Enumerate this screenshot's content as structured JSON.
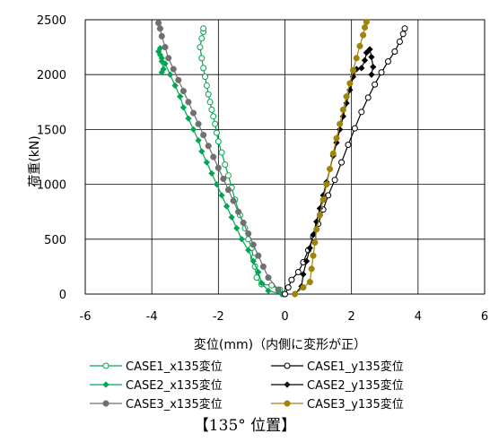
{
  "chart_data": {
    "type": "scatter",
    "xlabel": "変位(mm)（内側に変形が正）",
    "ylabel": "荷重(kN)",
    "xlim": [
      -6,
      6
    ],
    "ylim": [
      0,
      2500
    ],
    "xticks": [
      "-6",
      "-4",
      "-2",
      "0",
      "2",
      "4",
      "6"
    ],
    "yticks": [
      "0",
      "500",
      "1000",
      "1500",
      "2000",
      "2500"
    ],
    "grid": true,
    "legend_position": "bottom",
    "series": [
      {
        "name": "CASE1_x135変位",
        "color": "#00a651",
        "marker": "circle-open",
        "points": [
          [
            -0.05,
            0
          ],
          [
            -0.15,
            40
          ],
          [
            -0.4,
            80
          ],
          [
            -0.7,
            90
          ],
          [
            -0.85,
            150
          ],
          [
            -0.9,
            250
          ],
          [
            -0.95,
            330
          ],
          [
            -1.0,
            420
          ],
          [
            -1.1,
            500
          ],
          [
            -1.2,
            600
          ],
          [
            -1.35,
            720
          ],
          [
            -1.5,
            860
          ],
          [
            -1.6,
            970
          ],
          [
            -1.7,
            1080
          ],
          [
            -1.8,
            1180
          ],
          [
            -1.9,
            1290
          ],
          [
            -2.0,
            1390
          ],
          [
            -2.05,
            1470
          ],
          [
            -2.1,
            1550
          ],
          [
            -2.15,
            1620
          ],
          [
            -2.2,
            1680
          ],
          [
            -2.25,
            1750
          ],
          [
            -2.3,
            1820
          ],
          [
            -2.35,
            1900
          ],
          [
            -2.4,
            1980
          ],
          [
            -2.45,
            2060
          ],
          [
            -2.5,
            2150
          ],
          [
            -2.55,
            2250
          ],
          [
            -2.5,
            2330
          ],
          [
            -2.45,
            2390
          ],
          [
            -2.45,
            2420
          ]
        ]
      },
      {
        "name": "CASE2_x135変位",
        "color": "#00a651",
        "marker": "diamond-filled",
        "points": [
          [
            -0.1,
            0
          ],
          [
            -0.5,
            30
          ],
          [
            -0.7,
            100
          ],
          [
            -0.8,
            200
          ],
          [
            -0.95,
            300
          ],
          [
            -1.1,
            400
          ],
          [
            -1.3,
            500
          ],
          [
            -1.45,
            600
          ],
          [
            -1.6,
            700
          ],
          [
            -1.75,
            800
          ],
          [
            -1.9,
            900
          ],
          [
            -2.05,
            1000
          ],
          [
            -2.2,
            1100
          ],
          [
            -2.35,
            1200
          ],
          [
            -2.5,
            1300
          ],
          [
            -2.6,
            1400
          ],
          [
            -2.75,
            1500
          ],
          [
            -2.9,
            1600
          ],
          [
            -3.05,
            1700
          ],
          [
            -3.15,
            1800
          ],
          [
            -3.3,
            1900
          ],
          [
            -3.45,
            2000
          ],
          [
            -3.6,
            2100
          ],
          [
            -3.7,
            2150
          ],
          [
            -3.75,
            2180
          ],
          [
            -3.8,
            2210
          ],
          [
            -3.75,
            2240
          ],
          [
            -3.7,
            2120
          ],
          [
            -3.65,
            2050
          ],
          [
            -3.7,
            2020
          ]
        ]
      },
      {
        "name": "CASE3_x135変位",
        "color": "#707070",
        "marker": "circle-filled",
        "points": [
          [
            0,
            0
          ],
          [
            -0.2,
            40
          ],
          [
            -0.5,
            150
          ],
          [
            -0.65,
            250
          ],
          [
            -0.8,
            350
          ],
          [
            -0.95,
            450
          ],
          [
            -1.1,
            550
          ],
          [
            -1.25,
            650
          ],
          [
            -1.4,
            750
          ],
          [
            -1.55,
            850
          ],
          [
            -1.7,
            950
          ],
          [
            -1.85,
            1050
          ],
          [
            -2.0,
            1150
          ],
          [
            -2.15,
            1250
          ],
          [
            -2.3,
            1350
          ],
          [
            -2.45,
            1450
          ],
          [
            -2.6,
            1550
          ],
          [
            -2.75,
            1650
          ],
          [
            -2.9,
            1750
          ],
          [
            -3.05,
            1850
          ],
          [
            -3.2,
            1950
          ],
          [
            -3.35,
            2050
          ],
          [
            -3.5,
            2150
          ],
          [
            -3.6,
            2250
          ],
          [
            -3.7,
            2350
          ],
          [
            -3.75,
            2420
          ],
          [
            -3.8,
            2470
          ]
        ]
      },
      {
        "name": "CASE1_y135変位",
        "color": "#000000",
        "marker": "circle-open",
        "points": [
          [
            0,
            0
          ],
          [
            0.1,
            60
          ],
          [
            0.2,
            130
          ],
          [
            0.4,
            200
          ],
          [
            0.55,
            290
          ],
          [
            0.7,
            400
          ],
          [
            0.85,
            520
          ],
          [
            1.0,
            640
          ],
          [
            1.15,
            770
          ],
          [
            1.3,
            900
          ],
          [
            1.5,
            1040
          ],
          [
            1.7,
            1200
          ],
          [
            1.9,
            1360
          ],
          [
            2.1,
            1510
          ],
          [
            2.3,
            1660
          ],
          [
            2.5,
            1790
          ],
          [
            2.7,
            1910
          ],
          [
            2.9,
            2020
          ],
          [
            3.1,
            2120
          ],
          [
            3.3,
            2210
          ],
          [
            3.45,
            2300
          ],
          [
            3.55,
            2370
          ],
          [
            3.6,
            2420
          ]
        ]
      },
      {
        "name": "CASE2_y135変位",
        "color": "#000000",
        "marker": "diamond-filled",
        "points": [
          [
            0.3,
            0
          ],
          [
            0.5,
            70
          ],
          [
            0.55,
            180
          ],
          [
            0.65,
            300
          ],
          [
            0.75,
            420
          ],
          [
            0.85,
            540
          ],
          [
            0.95,
            660
          ],
          [
            1.05,
            780
          ],
          [
            1.15,
            900
          ],
          [
            1.25,
            1020
          ],
          [
            1.35,
            1140
          ],
          [
            1.45,
            1260
          ],
          [
            1.55,
            1380
          ],
          [
            1.65,
            1500
          ],
          [
            1.75,
            1620
          ],
          [
            1.85,
            1740
          ],
          [
            1.95,
            1860
          ],
          [
            2.05,
            1980
          ],
          [
            2.15,
            2050
          ],
          [
            2.3,
            2060
          ],
          [
            2.4,
            2130
          ],
          [
            2.45,
            2200
          ],
          [
            2.55,
            2230
          ],
          [
            2.6,
            2160
          ],
          [
            2.65,
            2070
          ],
          [
            2.6,
            2000
          ]
        ]
      },
      {
        "name": "CASE3_y135変位",
        "color": "#a0840a",
        "marker": "circle-filled",
        "points": [
          [
            0.3,
            0
          ],
          [
            0.55,
            60
          ],
          [
            0.75,
            110
          ],
          [
            0.8,
            230
          ],
          [
            0.85,
            350
          ],
          [
            0.9,
            470
          ],
          [
            0.95,
            590
          ],
          [
            1.05,
            720
          ],
          [
            1.15,
            860
          ],
          [
            1.25,
            1000
          ],
          [
            1.35,
            1140
          ],
          [
            1.45,
            1280
          ],
          [
            1.55,
            1420
          ],
          [
            1.65,
            1550
          ],
          [
            1.75,
            1680
          ],
          [
            1.85,
            1800
          ],
          [
            1.95,
            1920
          ],
          [
            2.05,
            2040
          ],
          [
            2.15,
            2150
          ],
          [
            2.25,
            2260
          ],
          [
            2.35,
            2360
          ],
          [
            2.4,
            2430
          ],
          [
            2.45,
            2480
          ]
        ]
      }
    ]
  },
  "caption": "【135° 位置】"
}
